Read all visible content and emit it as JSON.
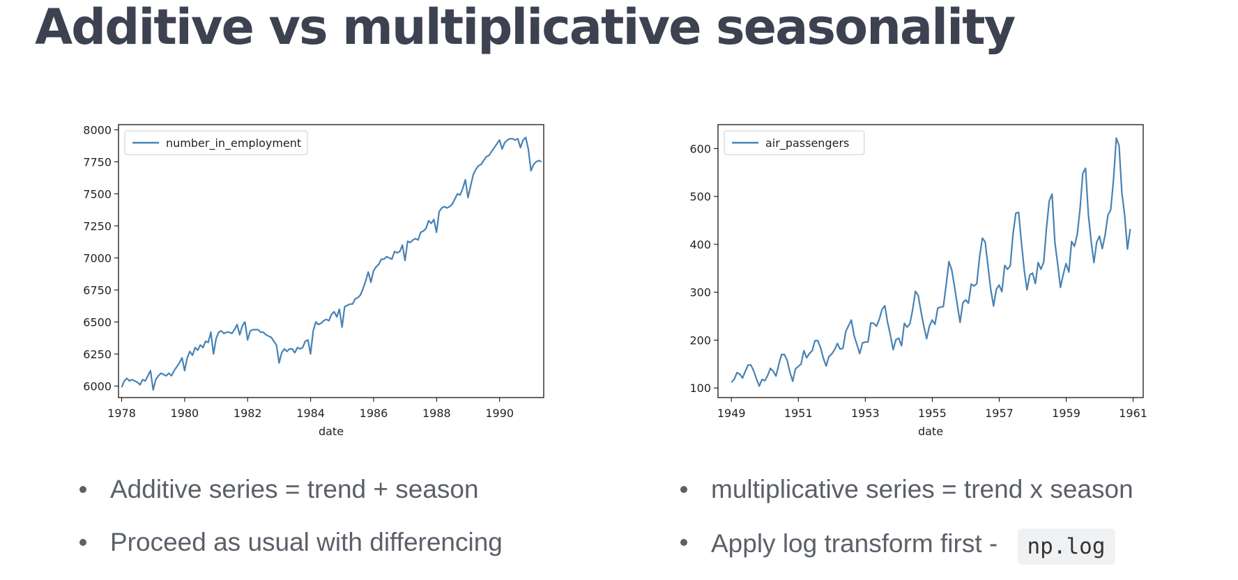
{
  "title": "Additive vs multiplicative seasonality",
  "colors": {
    "title": "#3d4251",
    "line": "#4682b4",
    "bullet_text": "#5b5f68",
    "code_bg": "#f0f1f3"
  },
  "left_bullets": [
    {
      "text": "Additive series = trend + season"
    },
    {
      "text": "Proceed as usual with differencing"
    }
  ],
  "right_bullets": [
    {
      "text": "multiplicative series = trend x season"
    },
    {
      "text": "Apply log transform first -",
      "code": "np.log"
    }
  ],
  "chart_data": [
    {
      "type": "line",
      "xlabel": "date",
      "ylabel": "",
      "legend": "top-left",
      "x_ticks": [
        "1978",
        "1980",
        "1982",
        "1984",
        "1986",
        "1988",
        "1990"
      ],
      "y_ticks": [
        "6000",
        "6250",
        "6500",
        "6750",
        "7000",
        "7250",
        "7500",
        "7750",
        "8000"
      ],
      "xlim": [
        1977.9,
        1991.4
      ],
      "ylim": [
        5910,
        8040
      ],
      "series": [
        {
          "name": "number_in_employment",
          "start": 1978.0,
          "step": 0.0833,
          "values": [
            5990,
            6040,
            6060,
            6040,
            6050,
            6040,
            6030,
            6010,
            6050,
            6040,
            6080,
            6120,
            5970,
            6050,
            6080,
            6100,
            6090,
            6080,
            6100,
            6080,
            6120,
            6150,
            6180,
            6220,
            6120,
            6220,
            6270,
            6240,
            6300,
            6280,
            6320,
            6300,
            6350,
            6340,
            6420,
            6250,
            6370,
            6420,
            6430,
            6410,
            6420,
            6420,
            6410,
            6440,
            6480,
            6400,
            6470,
            6500,
            6360,
            6430,
            6440,
            6440,
            6440,
            6420,
            6420,
            6400,
            6390,
            6380,
            6350,
            6320,
            6180,
            6260,
            6290,
            6270,
            6290,
            6290,
            6260,
            6300,
            6290,
            6300,
            6350,
            6360,
            6250,
            6430,
            6500,
            6480,
            6490,
            6510,
            6520,
            6510,
            6560,
            6580,
            6540,
            6600,
            6460,
            6620,
            6630,
            6640,
            6640,
            6680,
            6690,
            6710,
            6760,
            6820,
            6890,
            6810,
            6900,
            6930,
            6950,
            6990,
            6990,
            7010,
            7000,
            6990,
            7050,
            7040,
            7050,
            7100,
            6980,
            7130,
            7120,
            7140,
            7150,
            7140,
            7200,
            7210,
            7230,
            7290,
            7270,
            7300,
            7200,
            7360,
            7390,
            7400,
            7390,
            7400,
            7420,
            7460,
            7500,
            7490,
            7540,
            7610,
            7470,
            7560,
            7650,
            7690,
            7720,
            7730,
            7760,
            7790,
            7800,
            7830,
            7860,
            7890,
            7920,
            7850,
            7900,
            7920,
            7930,
            7930,
            7920,
            7930,
            7860,
            7920,
            7940,
            7850,
            7680,
            7730,
            7750,
            7760,
            7750
          ]
        }
      ]
    },
    {
      "type": "line",
      "xlabel": "date",
      "ylabel": "",
      "legend": "top-left",
      "x_ticks": [
        "1949",
        "1951",
        "1953",
        "1955",
        "1957",
        "1959",
        "1961"
      ],
      "y_ticks": [
        "100",
        "200",
        "300",
        "400",
        "500",
        "600"
      ],
      "xlim": [
        1948.6,
        1961.3
      ],
      "ylim": [
        80,
        650
      ],
      "series": [
        {
          "name": "air_passengers",
          "start": 1949.0,
          "step": 0.0833,
          "values": [
            112,
            118,
            132,
            129,
            121,
            135,
            148,
            148,
            136,
            119,
            104,
            118,
            115,
            126,
            141,
            135,
            125,
            149,
            170,
            170,
            158,
            133,
            114,
            140,
            145,
            150,
            178,
            163,
            172,
            178,
            199,
            199,
            184,
            162,
            146,
            166,
            171,
            180,
            193,
            181,
            183,
            218,
            230,
            242,
            209,
            191,
            172,
            194,
            196,
            196,
            236,
            235,
            229,
            243,
            264,
            272,
            237,
            211,
            180,
            201,
            204,
            188,
            235,
            227,
            234,
            264,
            302,
            293,
            259,
            229,
            203,
            229,
            242,
            233,
            267,
            269,
            270,
            315,
            364,
            347,
            312,
            274,
            237,
            278,
            284,
            277,
            317,
            313,
            318,
            374,
            413,
            405,
            355,
            306,
            271,
            306,
            315,
            301,
            356,
            348,
            355,
            422,
            465,
            467,
            404,
            347,
            305,
            336,
            340,
            318,
            362,
            348,
            363,
            435,
            491,
            505,
            404,
            359,
            310,
            337,
            360,
            342,
            406,
            396,
            420,
            472,
            548,
            559,
            463,
            407,
            362,
            405,
            417,
            391,
            419,
            461,
            472,
            535,
            622,
            606,
            508,
            461,
            390,
            432
          ]
        }
      ]
    }
  ]
}
